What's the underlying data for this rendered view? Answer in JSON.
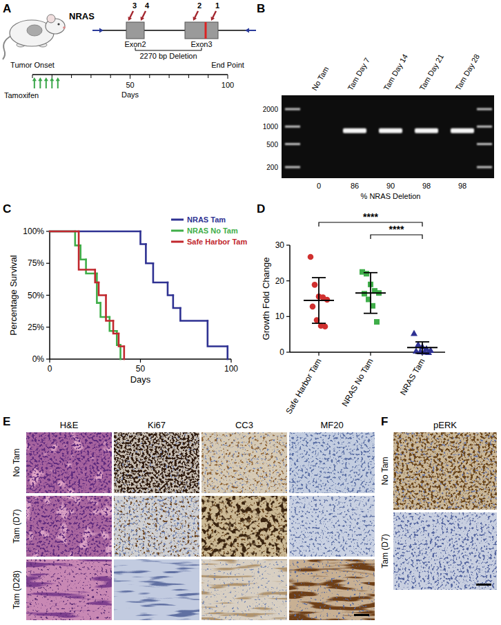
{
  "figure": {
    "panel_a": {
      "label": "A",
      "gene": "NRAS",
      "exons": [
        "Exon2",
        "Exon3"
      ],
      "primers": [
        "3",
        "4",
        "2",
        "1"
      ],
      "deletion": "2270 bp Deletion",
      "timeline": {
        "start_label": "Tumor Onset",
        "end_label": "End Point",
        "treatment": "Tamoxifen",
        "axis_label": "Days",
        "xlim": [
          0,
          100
        ],
        "ticks": [
          50,
          100
        ],
        "minor_ticks": [
          0,
          10,
          20,
          30,
          40,
          60,
          70,
          80,
          90
        ],
        "doses": [
          1,
          4,
          7,
          10,
          13
        ]
      }
    },
    "panel_b": {
      "label": "B",
      "lanes": [
        "No Tam",
        "Tam Day 7",
        "Tam Day 14",
        "Tam Day 21",
        "Tam Day 28"
      ],
      "ladder": [
        2000,
        1000,
        500,
        200
      ],
      "band_bp": [
        null,
        850,
        850,
        850,
        850
      ],
      "deletion_percent": [
        0,
        86,
        90,
        98,
        98
      ],
      "percent_label": "% NRAS Deletion"
    },
    "panel_e": {
      "label": "E",
      "columns": [
        "H&E",
        "Ki67",
        "CC3",
        "MF20"
      ],
      "rows": [
        "No Tam",
        "Tam (D7)",
        "Tam (D28)"
      ]
    },
    "panel_f": {
      "label": "F",
      "columns": [
        "pERK"
      ],
      "rows": [
        "No Tam",
        "Tam (D7)"
      ]
    }
  },
  "chart_data": [
    {
      "label": "C",
      "type": "line",
      "line_style": "step",
      "x_label": "Days",
      "y_label": "Percentage Survival",
      "xlim": [
        0,
        100
      ],
      "xticks": [
        0,
        50,
        100
      ],
      "ylim": [
        0,
        100
      ],
      "yticks": [
        {
          "value": 0,
          "label": "0%"
        },
        {
          "value": 25,
          "label": "25%"
        },
        {
          "value": 50,
          "label": "50%"
        },
        {
          "value": 75,
          "label": "75%"
        },
        {
          "value": 100,
          "label": "100%"
        }
      ],
      "legend": "top-right",
      "series": [
        {
          "name": "NRAS Tam",
          "color": "#2e3192",
          "x": [
            0,
            50,
            53,
            57,
            65,
            68,
            72,
            87,
            98
          ],
          "values": [
            100,
            90,
            75,
            60,
            50,
            40,
            30,
            10,
            0
          ]
        },
        {
          "name": "NRAS No Tam",
          "color": "#3fae49",
          "x": [
            0,
            14,
            17,
            20,
            26,
            28,
            33,
            37,
            39
          ],
          "values": [
            100,
            89,
            78,
            67,
            44,
            33,
            22,
            11,
            0
          ]
        },
        {
          "name": "Safe Harbor Tam",
          "color": "#c1272d",
          "x": [
            0,
            16,
            25,
            27,
            31,
            35,
            38,
            41
          ],
          "values": [
            100,
            70,
            60,
            50,
            30,
            20,
            10,
            0
          ]
        }
      ]
    },
    {
      "label": "D",
      "type": "scatter",
      "y_label": "Growth Fold Change",
      "categories": [
        "Safe Harbor Tam",
        "NRAS No Tam",
        "NRAS Tam"
      ],
      "ylim": [
        0,
        30
      ],
      "yticks": [
        0,
        10,
        20,
        30
      ],
      "groups": [
        {
          "color": "#d0302f",
          "marker": "circle",
          "values": [
            26.7,
            18.9,
            15.6,
            15.4,
            14.7,
            12.8,
            9.0,
            7.4,
            7.2
          ],
          "mean": 14.5,
          "error": 6.4
        },
        {
          "color": "#3fae49",
          "marker": "square",
          "values": [
            22.5,
            22.0,
            19.0,
            17.2,
            16.6,
            16.4,
            14.8,
            13.0,
            8.5
          ],
          "mean": 16.6,
          "error": 5.7
        },
        {
          "color": "#2e3192",
          "marker": "triangle",
          "values": [
            5.3,
            2.2,
            1.6,
            1.0,
            0.6,
            0.4,
            0.2,
            0.1,
            0.0
          ],
          "mean": 1.3,
          "error": 1.6
        }
      ],
      "annotations": [
        {
          "text": "****",
          "from": 0,
          "to": 2
        },
        {
          "text": "****",
          "from": 1,
          "to": 2
        }
      ]
    }
  ]
}
